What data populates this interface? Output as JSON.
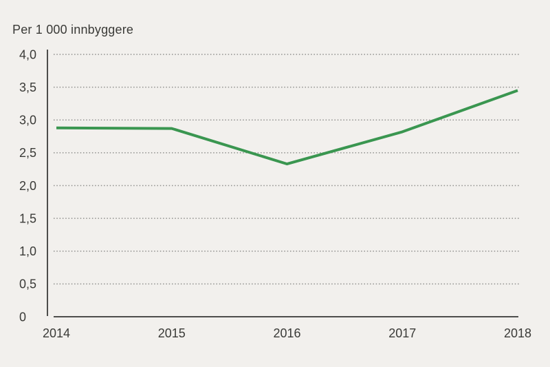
{
  "colors": {
    "background": "#f2f0ed",
    "line_green": "#3a9650",
    "axis": "#4d4d4b",
    "grid_dots": "#8e8e8c",
    "text": "#3a3a37"
  },
  "chart_data": {
    "type": "line",
    "title": "Per 1 000 innbyggere",
    "x": [
      "2014",
      "2015",
      "2016",
      "2017",
      "2018"
    ],
    "values": [
      2.88,
      2.87,
      2.33,
      2.82,
      3.45
    ],
    "xlabel": "",
    "ylabel": "Per 1 000 innbyggere",
    "ylim": [
      0,
      4
    ],
    "yticks": [
      {
        "label": "0",
        "value": 0
      },
      {
        "label": "0,5",
        "value": 0.5
      },
      {
        "label": "1,0",
        "value": 1
      },
      {
        "label": "1,5",
        "value": 1.5
      },
      {
        "label": "2,0",
        "value": 2
      },
      {
        "label": "2,5",
        "value": 2.5
      },
      {
        "label": "3,0",
        "value": 3
      },
      {
        "label": "3,5",
        "value": 3.5
      },
      {
        "label": "4,0",
        "value": 4
      }
    ],
    "grid": "horizontal-dotted",
    "legend": "none"
  }
}
